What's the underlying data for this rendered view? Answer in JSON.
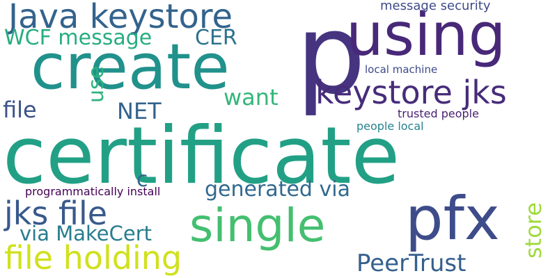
{
  "words": [
    {
      "id": "certificate",
      "text": "certificate",
      "color": "#22a085"
    },
    {
      "id": "p",
      "text": "p",
      "color": "#463480"
    },
    {
      "id": "create",
      "text": "create",
      "color": "#21918c"
    },
    {
      "id": "using",
      "text": "using",
      "color": "#482878"
    },
    {
      "id": "pfx",
      "text": "pfx",
      "color": "#3e4c8a"
    },
    {
      "id": "single",
      "text": "single",
      "color": "#44bf70"
    },
    {
      "id": "java-keystore",
      "text": "Java keystore",
      "color": "#33638d"
    },
    {
      "id": "keystore-jks",
      "text": "keystore jks",
      "color": "#472c7a"
    },
    {
      "id": "file-holding",
      "text": "file holding",
      "color": "#d0e11c"
    },
    {
      "id": "jks-file",
      "text": "jks file",
      "color": "#38598c"
    },
    {
      "id": "peertrust",
      "text": "PeerTrust",
      "color": "#355f8d"
    },
    {
      "id": "generated-via",
      "text": "generated via",
      "color": "#31688e"
    },
    {
      "id": "wcf-message",
      "text": "WCF message",
      "color": "#27ad81"
    },
    {
      "id": "cer",
      "text": "CER",
      "color": "#2c728e"
    },
    {
      "id": "want",
      "text": "want",
      "color": "#34b679"
    },
    {
      "id": "net",
      "text": "NET",
      "color": "#33628d"
    },
    {
      "id": "file",
      "text": "file",
      "color": "#3b528b"
    },
    {
      "id": "via-makecert",
      "text": "via MakeCert",
      "color": "#287d8e"
    },
    {
      "id": "store",
      "text": "store",
      "color": "#9fda3a"
    },
    {
      "id": "use",
      "text": "use",
      "color": "#2db27d"
    },
    {
      "id": "c",
      "text": "c",
      "color": "#31688e"
    },
    {
      "id": "message-security",
      "text": "message security",
      "color": "#3e4a89"
    },
    {
      "id": "local-machine",
      "text": "local machine",
      "color": "#3e4989"
    },
    {
      "id": "trusted-people",
      "text": "trusted people",
      "color": "#481f70"
    },
    {
      "id": "people-local",
      "text": "people local",
      "color": "#26828e"
    },
    {
      "id": "programmatically-install",
      "text": "programmatically install",
      "color": "#440154"
    }
  ]
}
